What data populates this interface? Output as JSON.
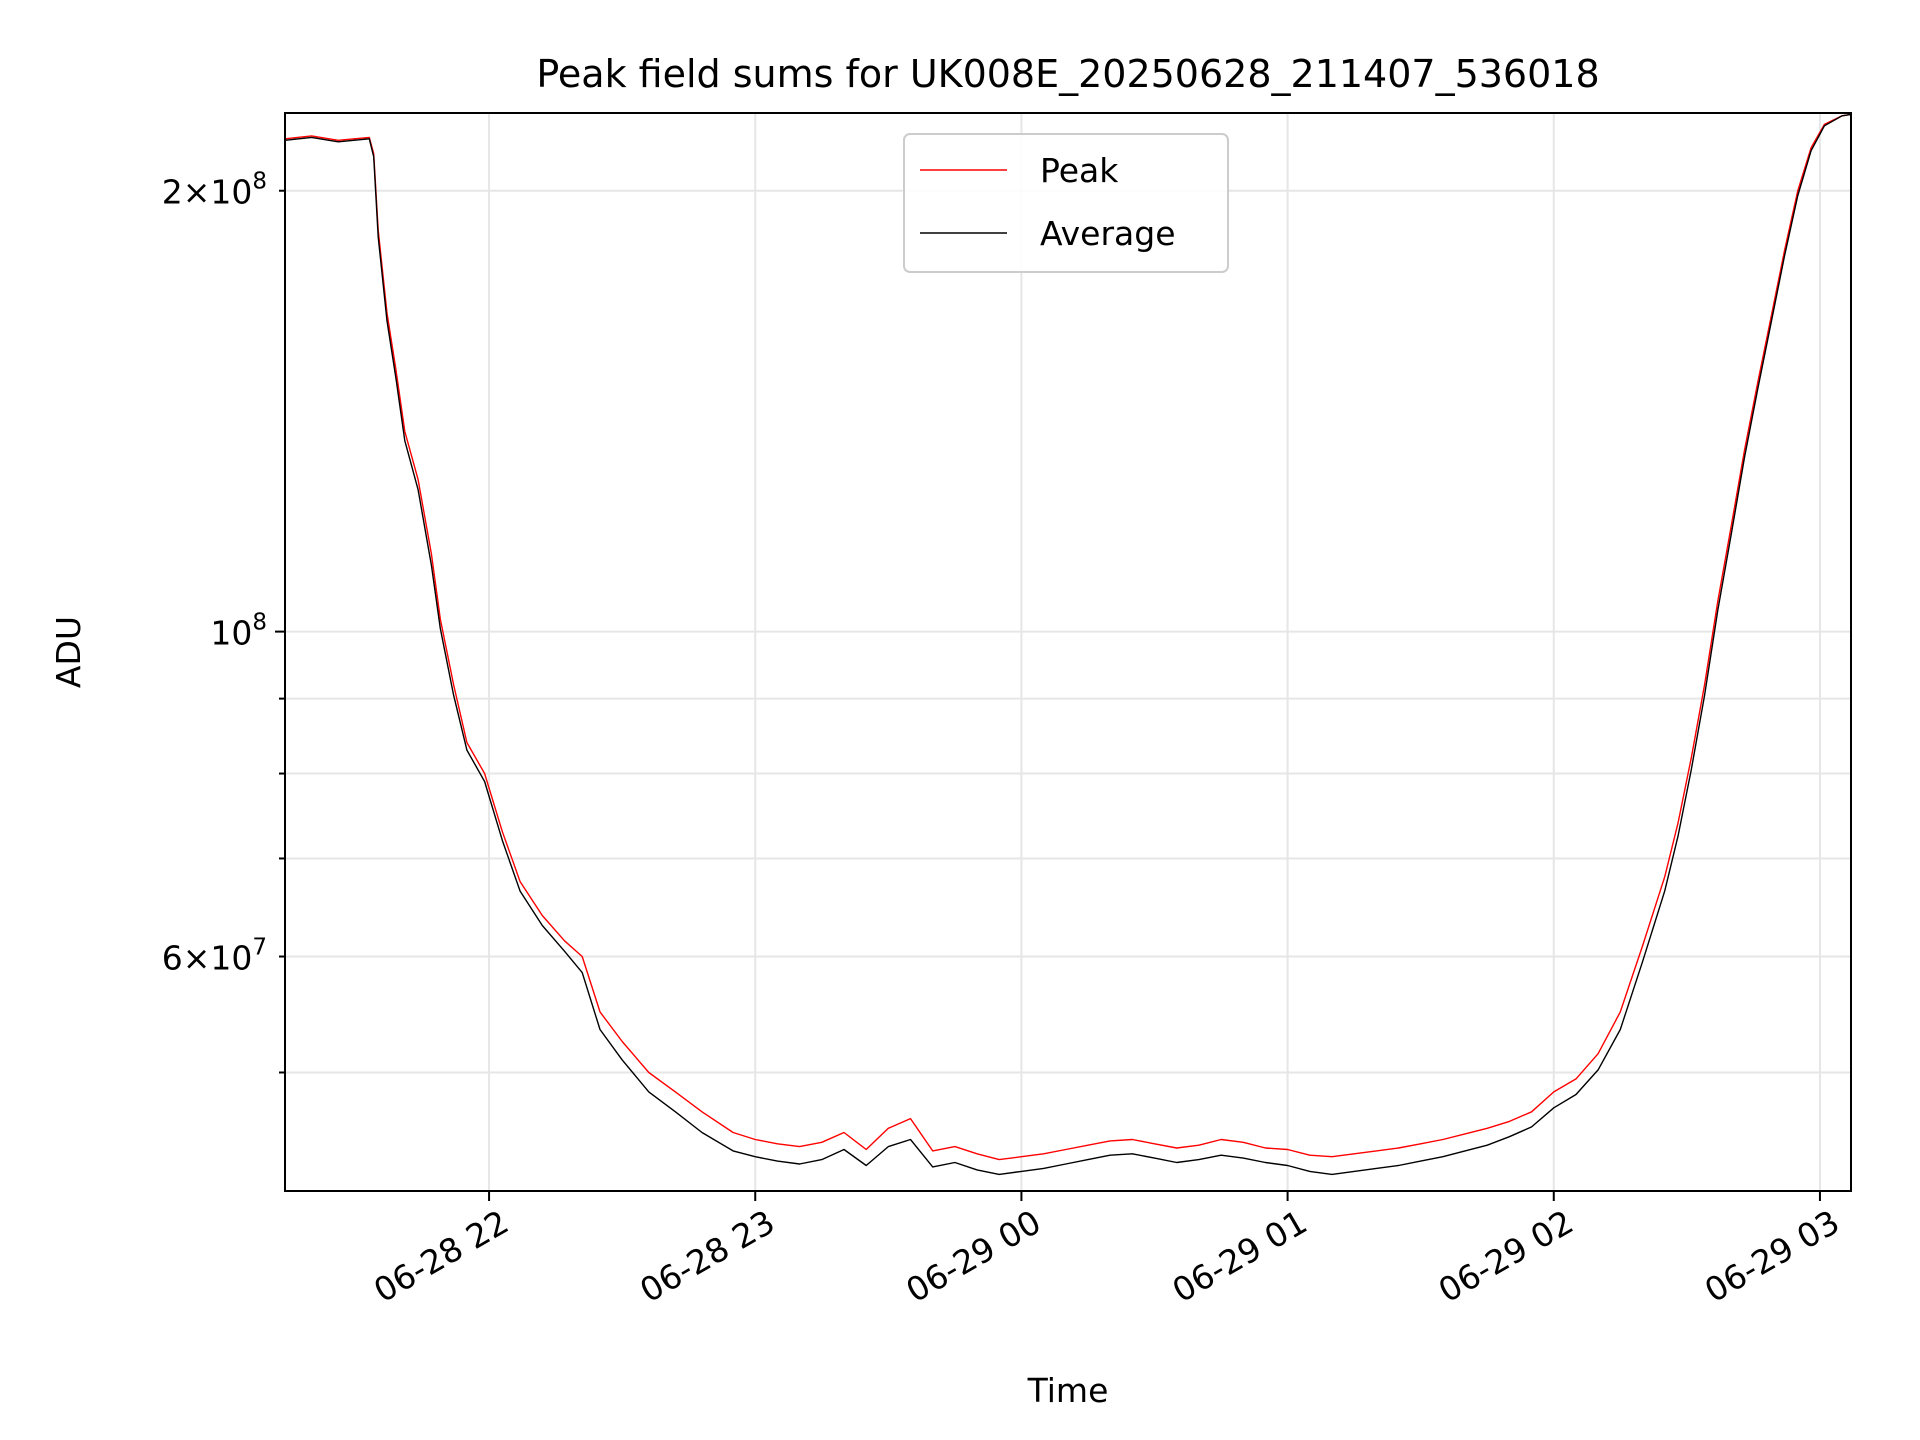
{
  "chart_data": {
    "type": "line",
    "title": "Peak field sums for UK008E_20250628_211407_536018",
    "xlabel": "Time",
    "ylabel": "ADU",
    "xlim": [
      "2025-06-28 21:14",
      "2025-06-29 03:07"
    ],
    "ylim": [
      41500000,
      226000000
    ],
    "yscale": "log",
    "grid": true,
    "legend_position": "upper center",
    "x_ticks": [
      {
        "value": "2025-06-28 22:00",
        "label": "06-28 22"
      },
      {
        "value": "2025-06-28 23:00",
        "label": "06-28 23"
      },
      {
        "value": "2025-06-29 00:00",
        "label": "06-29 00"
      },
      {
        "value": "2025-06-29 01:00",
        "label": "06-29 01"
      },
      {
        "value": "2025-06-29 02:00",
        "label": "06-29 02"
      },
      {
        "value": "2025-06-29 03:00",
        "label": "06-29 03"
      }
    ],
    "y_major_ticks": [
      {
        "value": 100000000,
        "base": "10",
        "exp": "8"
      }
    ],
    "y_minor_ticks": [
      {
        "value": 200000000,
        "mant": "2",
        "base": "10",
        "exp": "8"
      },
      {
        "value": 60000000,
        "mant": "6",
        "base": "10",
        "exp": "7"
      }
    ],
    "y_minor_unlabeled": [
      50000000,
      70000000,
      80000000,
      90000000
    ],
    "series": [
      {
        "name": "Peak",
        "color": "#ff0000",
        "points": [
          [
            "2025-06-28 21:14",
            217000000
          ],
          [
            "2025-06-28 21:20",
            218000000
          ],
          [
            "2025-06-28 21:26",
            216500000
          ],
          [
            "2025-06-28 21:33",
            217500000
          ],
          [
            "2025-06-28 21:34",
            212000000
          ],
          [
            "2025-06-28 21:35",
            188000000
          ],
          [
            "2025-06-28 21:37",
            165000000
          ],
          [
            "2025-06-28 21:39",
            151000000
          ],
          [
            "2025-06-28 21:41",
            137000000
          ],
          [
            "2025-06-28 21:44",
            127000000
          ],
          [
            "2025-06-28 21:47",
            113000000
          ],
          [
            "2025-06-28 21:49",
            102000000
          ],
          [
            "2025-06-28 21:52",
            92000000
          ],
          [
            "2025-06-28 21:55",
            84000000
          ],
          [
            "2025-06-28 21:59",
            80000000
          ],
          [
            "2025-06-28 22:03",
            73000000
          ],
          [
            "2025-06-28 22:07",
            67500000
          ],
          [
            "2025-06-28 22:12",
            64000000
          ],
          [
            "2025-06-28 22:17",
            61500000
          ],
          [
            "2025-06-28 22:21",
            60000000
          ],
          [
            "2025-06-28 22:25",
            55000000
          ],
          [
            "2025-06-28 22:30",
            52500000
          ],
          [
            "2025-06-28 22:36",
            50000000
          ],
          [
            "2025-06-28 22:42",
            48500000
          ],
          [
            "2025-06-28 22:48",
            47000000
          ],
          [
            "2025-06-28 22:55",
            45500000
          ],
          [
            "2025-06-28 23:00",
            45000000
          ],
          [
            "2025-06-28 23:05",
            44700000
          ],
          [
            "2025-06-28 23:10",
            44500000
          ],
          [
            "2025-06-28 23:15",
            44800000
          ],
          [
            "2025-06-28 23:20",
            45500000
          ],
          [
            "2025-06-28 23:25",
            44300000
          ],
          [
            "2025-06-28 23:30",
            45800000
          ],
          [
            "2025-06-28 23:35",
            46500000
          ],
          [
            "2025-06-28 23:40",
            44200000
          ],
          [
            "2025-06-28 23:45",
            44500000
          ],
          [
            "2025-06-28 23:50",
            44000000
          ],
          [
            "2025-06-28 23:55",
            43600000
          ],
          [
            "2025-06-29 00:00",
            43800000
          ],
          [
            "2025-06-29 00:05",
            44000000
          ],
          [
            "2025-06-29 00:10",
            44300000
          ],
          [
            "2025-06-29 00:15",
            44600000
          ],
          [
            "2025-06-29 00:20",
            44900000
          ],
          [
            "2025-06-29 00:25",
            45000000
          ],
          [
            "2025-06-29 00:30",
            44700000
          ],
          [
            "2025-06-29 00:35",
            44400000
          ],
          [
            "2025-06-29 00:40",
            44600000
          ],
          [
            "2025-06-29 00:45",
            45000000
          ],
          [
            "2025-06-29 00:50",
            44800000
          ],
          [
            "2025-06-29 00:55",
            44400000
          ],
          [
            "2025-06-29 01:00",
            44300000
          ],
          [
            "2025-06-29 01:05",
            43900000
          ],
          [
            "2025-06-29 01:10",
            43800000
          ],
          [
            "2025-06-29 01:15",
            44000000
          ],
          [
            "2025-06-29 01:20",
            44200000
          ],
          [
            "2025-06-29 01:25",
            44400000
          ],
          [
            "2025-06-29 01:30",
            44700000
          ],
          [
            "2025-06-29 01:35",
            45000000
          ],
          [
            "2025-06-29 01:40",
            45400000
          ],
          [
            "2025-06-29 01:45",
            45800000
          ],
          [
            "2025-06-29 01:50",
            46300000
          ],
          [
            "2025-06-29 01:55",
            47000000
          ],
          [
            "2025-06-29 02:00",
            48500000
          ],
          [
            "2025-06-29 02:05",
            49500000
          ],
          [
            "2025-06-29 02:10",
            51500000
          ],
          [
            "2025-06-29 02:15",
            55000000
          ],
          [
            "2025-06-29 02:20",
            61000000
          ],
          [
            "2025-06-29 02:25",
            68000000
          ],
          [
            "2025-06-29 02:28",
            74000000
          ],
          [
            "2025-06-29 02:31",
            82000000
          ],
          [
            "2025-06-29 02:34",
            92000000
          ],
          [
            "2025-06-29 02:37",
            105000000
          ],
          [
            "2025-06-29 02:40",
            118000000
          ],
          [
            "2025-06-29 02:43",
            133000000
          ],
          [
            "2025-06-29 02:46",
            148000000
          ],
          [
            "2025-06-29 02:49",
            164000000
          ],
          [
            "2025-06-29 02:52",
            182000000
          ],
          [
            "2025-06-29 02:55",
            200000000
          ],
          [
            "2025-06-29 02:58",
            214000000
          ],
          [
            "2025-06-29 03:01",
            222000000
          ],
          [
            "2025-06-29 03:05",
            225000000
          ],
          [
            "2025-06-29 03:07",
            225500000
          ]
        ]
      },
      {
        "name": "Average",
        "color": "#000000",
        "points": [
          [
            "2025-06-28 21:14",
            216500000
          ],
          [
            "2025-06-28 21:20",
            217500000
          ],
          [
            "2025-06-28 21:26",
            216000000
          ],
          [
            "2025-06-28 21:33",
            217000000
          ],
          [
            "2025-06-28 21:34",
            211000000
          ],
          [
            "2025-06-28 21:35",
            186000000
          ],
          [
            "2025-06-28 21:37",
            163000000
          ],
          [
            "2025-06-28 21:39",
            149000000
          ],
          [
            "2025-06-28 21:41",
            135000000
          ],
          [
            "2025-06-28 21:44",
            125000000
          ],
          [
            "2025-06-28 21:47",
            111000000
          ],
          [
            "2025-06-28 21:49",
            100500000
          ],
          [
            "2025-06-28 21:52",
            90500000
          ],
          [
            "2025-06-28 21:55",
            83000000
          ],
          [
            "2025-06-28 21:59",
            79000000
          ],
          [
            "2025-06-28 22:03",
            72000000
          ],
          [
            "2025-06-28 22:07",
            66500000
          ],
          [
            "2025-06-28 22:12",
            63000000
          ],
          [
            "2025-06-28 22:17",
            60500000
          ],
          [
            "2025-06-28 22:21",
            58500000
          ],
          [
            "2025-06-28 22:25",
            53500000
          ],
          [
            "2025-06-28 22:30",
            51000000
          ],
          [
            "2025-06-28 22:36",
            48500000
          ],
          [
            "2025-06-28 22:42",
            47000000
          ],
          [
            "2025-06-28 22:48",
            45500000
          ],
          [
            "2025-06-28 22:55",
            44200000
          ],
          [
            "2025-06-28 23:00",
            43800000
          ],
          [
            "2025-06-28 23:05",
            43500000
          ],
          [
            "2025-06-28 23:10",
            43300000
          ],
          [
            "2025-06-28 23:15",
            43600000
          ],
          [
            "2025-06-28 23:20",
            44300000
          ],
          [
            "2025-06-28 23:25",
            43200000
          ],
          [
            "2025-06-28 23:30",
            44500000
          ],
          [
            "2025-06-28 23:35",
            45000000
          ],
          [
            "2025-06-28 23:40",
            43100000
          ],
          [
            "2025-06-28 23:45",
            43400000
          ],
          [
            "2025-06-28 23:50",
            42900000
          ],
          [
            "2025-06-28 23:55",
            42600000
          ],
          [
            "2025-06-29 00:00",
            42800000
          ],
          [
            "2025-06-29 00:05",
            43000000
          ],
          [
            "2025-06-29 00:10",
            43300000
          ],
          [
            "2025-06-29 00:15",
            43600000
          ],
          [
            "2025-06-29 00:20",
            43900000
          ],
          [
            "2025-06-29 00:25",
            44000000
          ],
          [
            "2025-06-29 00:30",
            43700000
          ],
          [
            "2025-06-29 00:35",
            43400000
          ],
          [
            "2025-06-29 00:40",
            43600000
          ],
          [
            "2025-06-29 00:45",
            43900000
          ],
          [
            "2025-06-29 00:50",
            43700000
          ],
          [
            "2025-06-29 00:55",
            43400000
          ],
          [
            "2025-06-29 01:00",
            43200000
          ],
          [
            "2025-06-29 01:05",
            42800000
          ],
          [
            "2025-06-29 01:10",
            42600000
          ],
          [
            "2025-06-29 01:15",
            42800000
          ],
          [
            "2025-06-29 01:20",
            43000000
          ],
          [
            "2025-06-29 01:25",
            43200000
          ],
          [
            "2025-06-29 01:30",
            43500000
          ],
          [
            "2025-06-29 01:35",
            43800000
          ],
          [
            "2025-06-29 01:40",
            44200000
          ],
          [
            "2025-06-29 01:45",
            44600000
          ],
          [
            "2025-06-29 01:50",
            45200000
          ],
          [
            "2025-06-29 01:55",
            45900000
          ],
          [
            "2025-06-29 02:00",
            47300000
          ],
          [
            "2025-06-29 02:05",
            48300000
          ],
          [
            "2025-06-29 02:10",
            50200000
          ],
          [
            "2025-06-29 02:15",
            53500000
          ],
          [
            "2025-06-29 02:20",
            59500000
          ],
          [
            "2025-06-29 02:25",
            66500000
          ],
          [
            "2025-06-29 02:28",
            72500000
          ],
          [
            "2025-06-29 02:31",
            80500000
          ],
          [
            "2025-06-29 02:34",
            90500000
          ],
          [
            "2025-06-29 02:37",
            103500000
          ],
          [
            "2025-06-29 02:40",
            116500000
          ],
          [
            "2025-06-29 02:43",
            131500000
          ],
          [
            "2025-06-29 02:46",
            146500000
          ],
          [
            "2025-06-29 02:49",
            162500000
          ],
          [
            "2025-06-29 02:52",
            180500000
          ],
          [
            "2025-06-29 02:55",
            198500000
          ],
          [
            "2025-06-29 02:58",
            213000000
          ],
          [
            "2025-06-29 03:01",
            221500000
          ],
          [
            "2025-06-29 03:05",
            225000000
          ],
          [
            "2025-06-29 03:07",
            225500000
          ]
        ]
      }
    ]
  }
}
